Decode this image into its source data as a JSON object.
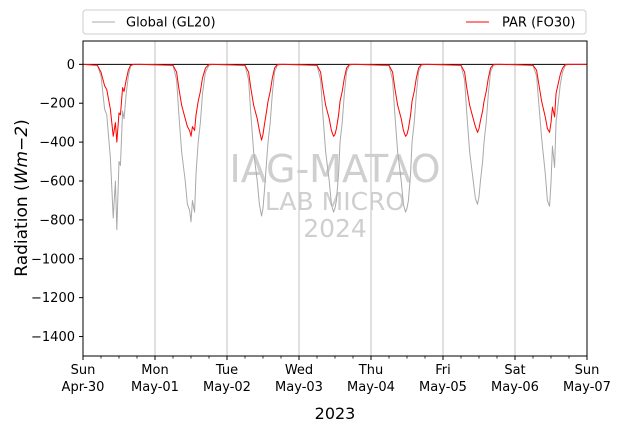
{
  "chart_data": {
    "type": "line",
    "xlabel": "2023",
    "ylabel_main": "Radiation (",
    "ylabel_unit": "Wm−2",
    "ylabel_close": ")",
    "ylim": [
      -1500,
      120
    ],
    "yticks": [
      0,
      -200,
      -400,
      -600,
      -800,
      -1000,
      -1200,
      -1400
    ],
    "ytick_labels": [
      "0",
      "−200",
      "−400",
      "−600",
      "−800",
      "−1000",
      "−1200",
      "−1400"
    ],
    "xlim_days": [
      0,
      7
    ],
    "xticks": [
      {
        "day": "Sun",
        "date": "Apr-30"
      },
      {
        "day": "Mon",
        "date": "May-01"
      },
      {
        "day": "Tue",
        "date": "May-02"
      },
      {
        "day": "Wed",
        "date": "May-03"
      },
      {
        "day": "Thu",
        "date": "May-04"
      },
      {
        "day": "Fri",
        "date": "May-05"
      },
      {
        "day": "Sat",
        "date": "May-06"
      },
      {
        "day": "Sun",
        "date": "May-07"
      }
    ],
    "grid": "vertical",
    "zero_line": true,
    "legend": {
      "placement": "above",
      "entries": [
        "Global (GL20)",
        "PAR (FO30)"
      ]
    },
    "series": [
      {
        "name": "Global (GL20)",
        "color": "#a9a9a9",
        "x": [
          0,
          0.2,
          0.25,
          0.3,
          0.33,
          0.38,
          0.42,
          0.45,
          0.47,
          0.5,
          0.52,
          0.55,
          0.57,
          0.6,
          0.63,
          0.66,
          0.7,
          0.75,
          0.8,
          1.25,
          1.3,
          1.33,
          1.37,
          1.42,
          1.45,
          1.48,
          1.5,
          1.52,
          1.55,
          1.57,
          1.6,
          1.63,
          1.66,
          1.7,
          1.75,
          1.8,
          2.25,
          2.3,
          2.33,
          2.37,
          2.42,
          2.45,
          2.48,
          2.5,
          2.52,
          2.55,
          2.57,
          2.6,
          2.63,
          2.66,
          2.7,
          2.75,
          2.8,
          3.25,
          3.3,
          3.33,
          3.37,
          3.42,
          3.45,
          3.48,
          3.5,
          3.52,
          3.55,
          3.57,
          3.6,
          3.63,
          3.66,
          3.7,
          3.75,
          3.8,
          4.25,
          4.3,
          4.33,
          4.37,
          4.42,
          4.45,
          4.48,
          4.5,
          4.52,
          4.55,
          4.57,
          4.6,
          4.63,
          4.66,
          4.7,
          4.75,
          4.8,
          5.25,
          5.3,
          5.33,
          5.37,
          5.42,
          5.45,
          5.48,
          5.5,
          5.52,
          5.55,
          5.57,
          5.6,
          5.63,
          5.66,
          5.7,
          5.75,
          5.8,
          6.25,
          6.3,
          6.33,
          6.37,
          6.42,
          6.45,
          6.48,
          6.5,
          6.52,
          6.55,
          6.57,
          6.6,
          6.63,
          6.66,
          6.7,
          6.75,
          6.8,
          7.0
        ],
        "y": [
          0,
          -5,
          -60,
          -230,
          -260,
          -480,
          -790,
          -600,
          -850,
          -500,
          -520,
          -240,
          -280,
          -150,
          -60,
          -10,
          0,
          0,
          0,
          -5,
          -80,
          -250,
          -450,
          -600,
          -720,
          -750,
          -810,
          -700,
          -760,
          -560,
          -400,
          -300,
          -150,
          -40,
          -5,
          0,
          -5,
          -80,
          -250,
          -450,
          -600,
          -720,
          -780,
          -740,
          -650,
          -500,
          -400,
          -300,
          -150,
          -40,
          -5,
          0,
          0,
          -5,
          -80,
          -250,
          -450,
          -600,
          -720,
          -760,
          -740,
          -700,
          -560,
          -400,
          -300,
          -150,
          -40,
          -5,
          0,
          0,
          -5,
          -80,
          -250,
          -450,
          -600,
          -720,
          -760,
          -740,
          -700,
          -560,
          -400,
          -300,
          -150,
          -40,
          -5,
          0,
          0,
          -5,
          -80,
          -250,
          -450,
          -600,
          -690,
          -720,
          -680,
          -600,
          -500,
          -400,
          -300,
          -150,
          -40,
          -5,
          0,
          0,
          -5,
          -60,
          -200,
          -380,
          -560,
          -700,
          -730,
          -610,
          -420,
          -530,
          -300,
          -200,
          -100,
          -40,
          -5,
          0,
          0,
          0
        ]
      },
      {
        "name": "PAR (FO30)",
        "color": "#ff0000",
        "x": [
          0,
          0.2,
          0.25,
          0.3,
          0.33,
          0.38,
          0.42,
          0.45,
          0.47,
          0.5,
          0.52,
          0.55,
          0.57,
          0.6,
          0.63,
          0.66,
          0.7,
          0.75,
          0.8,
          1.25,
          1.3,
          1.33,
          1.37,
          1.42,
          1.45,
          1.48,
          1.5,
          1.52,
          1.55,
          1.57,
          1.6,
          1.63,
          1.66,
          1.7,
          1.75,
          1.8,
          2.25,
          2.3,
          2.33,
          2.37,
          2.42,
          2.45,
          2.48,
          2.5,
          2.52,
          2.55,
          2.57,
          2.6,
          2.63,
          2.66,
          2.7,
          2.75,
          2.8,
          3.25,
          3.3,
          3.33,
          3.37,
          3.42,
          3.45,
          3.48,
          3.5,
          3.52,
          3.55,
          3.57,
          3.6,
          3.63,
          3.66,
          3.7,
          3.75,
          3.8,
          4.25,
          4.3,
          4.33,
          4.37,
          4.42,
          4.45,
          4.48,
          4.5,
          4.52,
          4.55,
          4.57,
          4.6,
          4.63,
          4.66,
          4.7,
          4.75,
          4.8,
          5.25,
          5.3,
          5.33,
          5.37,
          5.42,
          5.45,
          5.48,
          5.5,
          5.52,
          5.55,
          5.57,
          5.6,
          5.63,
          5.66,
          5.7,
          5.75,
          5.8,
          6.25,
          6.3,
          6.33,
          6.37,
          6.42,
          6.45,
          6.48,
          6.5,
          6.52,
          6.55,
          6.57,
          6.6,
          6.63,
          6.66,
          6.7,
          6.75,
          6.8,
          7.0
        ],
        "y": [
          0,
          -5,
          -40,
          -110,
          -130,
          -230,
          -370,
          -300,
          -400,
          -250,
          -260,
          -120,
          -140,
          -80,
          -30,
          -5,
          0,
          0,
          0,
          -5,
          -40,
          -120,
          -210,
          -280,
          -320,
          -340,
          -370,
          -320,
          -340,
          -260,
          -190,
          -140,
          -70,
          -20,
          0,
          0,
          -5,
          -40,
          -120,
          -210,
          -280,
          -340,
          -390,
          -360,
          -310,
          -240,
          -190,
          -140,
          -70,
          -20,
          0,
          0,
          0,
          -5,
          -40,
          -120,
          -210,
          -280,
          -340,
          -370,
          -360,
          -330,
          -260,
          -190,
          -140,
          -70,
          -20,
          0,
          0,
          0,
          -5,
          -40,
          -120,
          -210,
          -280,
          -340,
          -370,
          -360,
          -330,
          -260,
          -190,
          -140,
          -70,
          -20,
          0,
          0,
          0,
          -5,
          -40,
          -120,
          -210,
          -280,
          -320,
          -350,
          -330,
          -290,
          -240,
          -190,
          -140,
          -70,
          -20,
          0,
          0,
          0,
          -5,
          -30,
          -100,
          -190,
          -270,
          -330,
          -350,
          -300,
          -220,
          -270,
          -150,
          -100,
          -50,
          -20,
          0,
          0,
          0,
          0
        ]
      }
    ],
    "watermark": {
      "line1": "IAG-MATAO",
      "line2": "LAB MICRO",
      "line3": "2024"
    }
  }
}
